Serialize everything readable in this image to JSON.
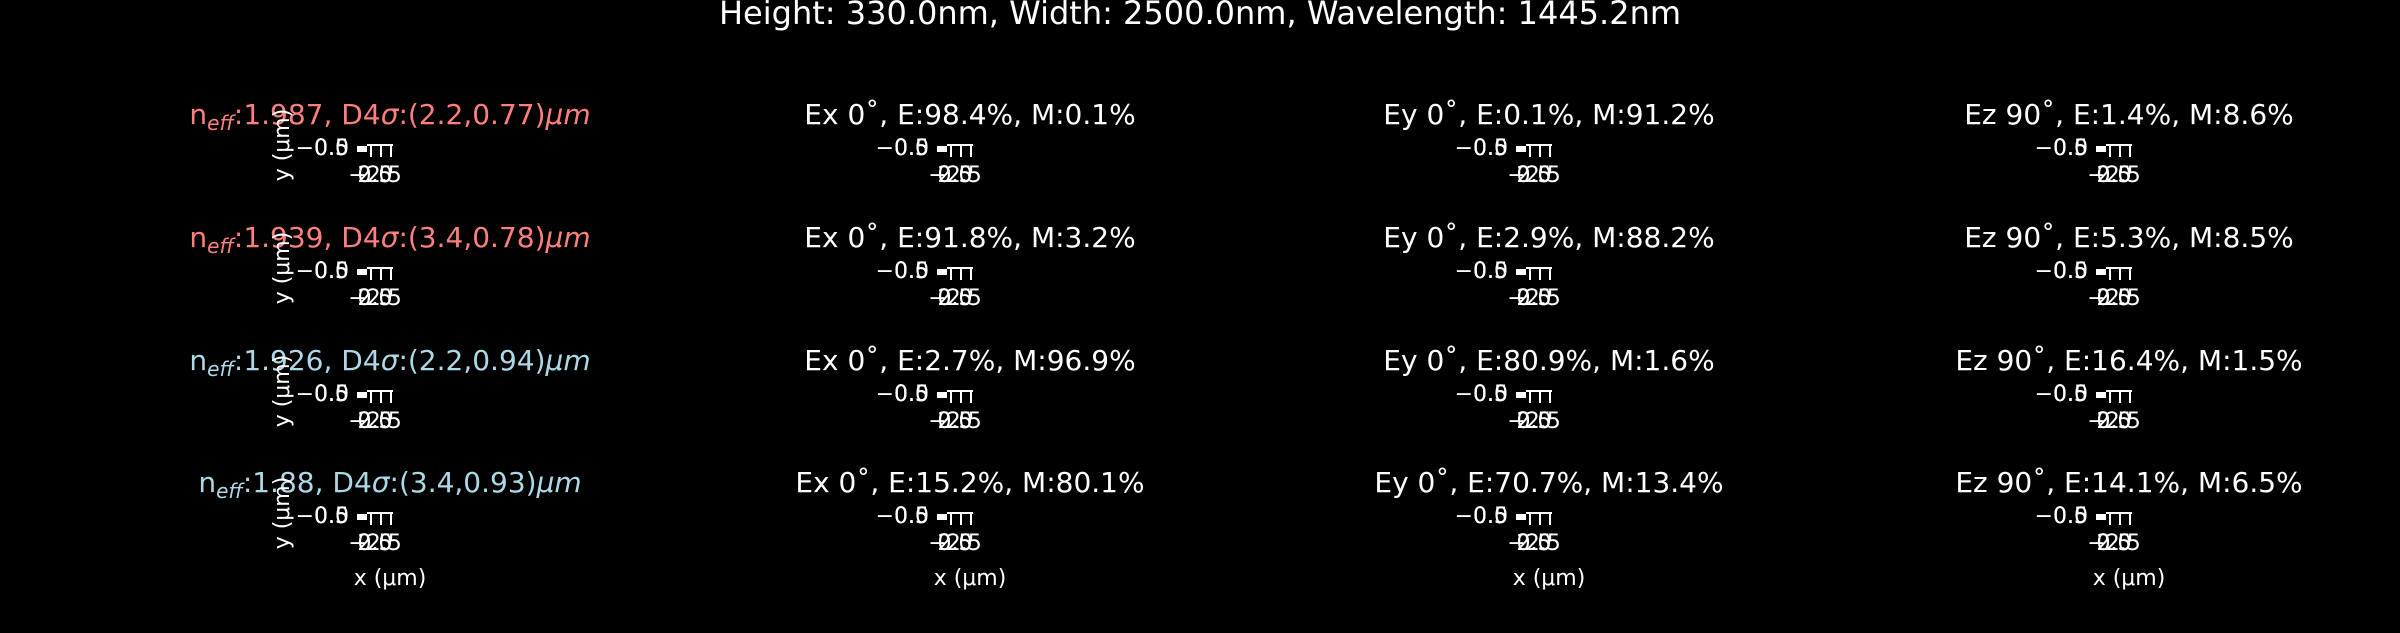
{
  "chart_data": {
    "type": "heatmap",
    "title": "Height: 330.0nm, Width: 2500.0nm, Wavelength: 1445.2nm",
    "xlabel": "x (μm)",
    "ylabel": "y (μm)",
    "x_ticks": [
      "−2.5",
      "0.0",
      "2.5"
    ],
    "y_ticks": [
      "−0.5",
      "0.0",
      "0.5"
    ],
    "colors": {
      "te_mode": "#ff7f7f",
      "tm_mode": "#add8e6",
      "text": "#ffffff",
      "background": "#000000"
    },
    "rows": [
      {
        "mode_label": {
          "n": "n",
          "sub": "eff",
          "rest": ":1.987, D4",
          "sigma": "σ",
          "dims": ":(2.2,0.77)",
          "unit": "μm"
        },
        "polarization": "te",
        "panels": [
          {
            "title": "Ex 0˚, E:98.4%, M:0.1%"
          },
          {
            "title": "Ey 0˚, E:0.1%, M:91.2%"
          },
          {
            "title": "Ez 90˚, E:1.4%, M:8.6%"
          }
        ]
      },
      {
        "mode_label": {
          "n": "n",
          "sub": "eff",
          "rest": ":1.939, D4",
          "sigma": "σ",
          "dims": ":(3.4,0.78)",
          "unit": "μm"
        },
        "polarization": "te",
        "panels": [
          {
            "title": "Ex 0˚, E:91.8%, M:3.2%"
          },
          {
            "title": "Ey 0˚, E:2.9%, M:88.2%"
          },
          {
            "title": "Ez 90˚, E:5.3%, M:8.5%"
          }
        ]
      },
      {
        "mode_label": {
          "n": "n",
          "sub": "eff",
          "rest": ":1.926, D4",
          "sigma": "σ",
          "dims": ":(2.2,0.94)",
          "unit": "μm"
        },
        "polarization": "tm",
        "panels": [
          {
            "title": "Ex 0˚, E:2.7%, M:96.9%"
          },
          {
            "title": "Ey 0˚, E:80.9%, M:1.6%"
          },
          {
            "title": "Ez 90˚, E:16.4%, M:1.5%"
          }
        ]
      },
      {
        "mode_label": {
          "n": "n",
          "sub": "eff",
          "rest": ":1.88, D4",
          "sigma": "σ",
          "dims": ":(3.4,0.93)",
          "unit": "μm"
        },
        "polarization": "tm",
        "panels": [
          {
            "title": "Ex 0˚, E:15.2%, M:80.1%"
          },
          {
            "title": "Ey 0˚, E:70.7%, M:13.4%"
          },
          {
            "title": "Ez 90˚, E:14.1%, M:6.5%"
          }
        ]
      }
    ]
  }
}
